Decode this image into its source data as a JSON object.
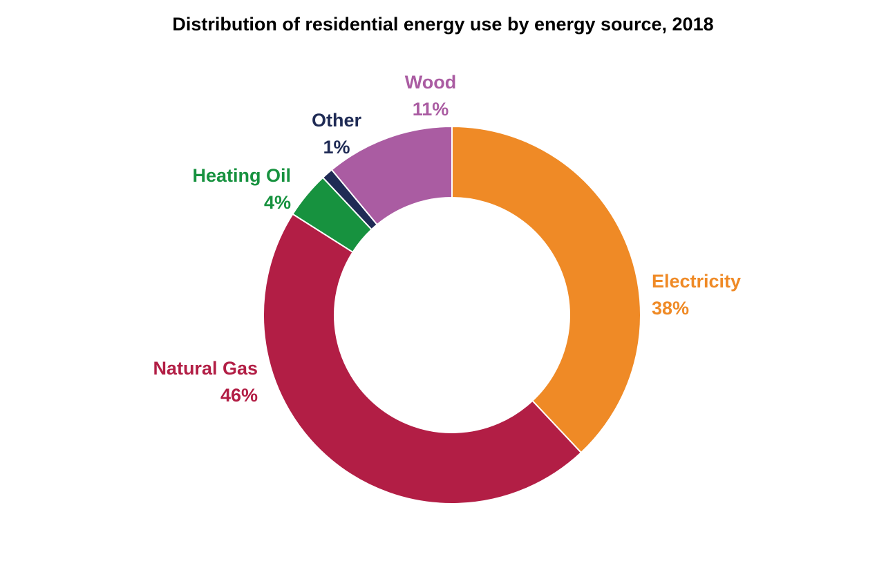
{
  "chart_data": {
    "type": "pie",
    "subtype": "donut",
    "title": "Distribution of residential energy use by energy source, 2018",
    "slices": [
      {
        "name": "Electricity",
        "value": 38,
        "label": "38%",
        "color": "#EF8A26"
      },
      {
        "name": "Natural Gas",
        "value": 46,
        "label": "46%",
        "color": "#B21E45"
      },
      {
        "name": "Heating Oil",
        "value": 4,
        "label": "4%",
        "color": "#17923F"
      },
      {
        "name": "Other",
        "value": 1,
        "label": "1%",
        "color": "#1F2B55"
      },
      {
        "name": "Wood",
        "value": 11,
        "label": "11%",
        "color": "#AA5CA2"
      }
    ],
    "legend": "none",
    "background": "#FFFFFF"
  }
}
